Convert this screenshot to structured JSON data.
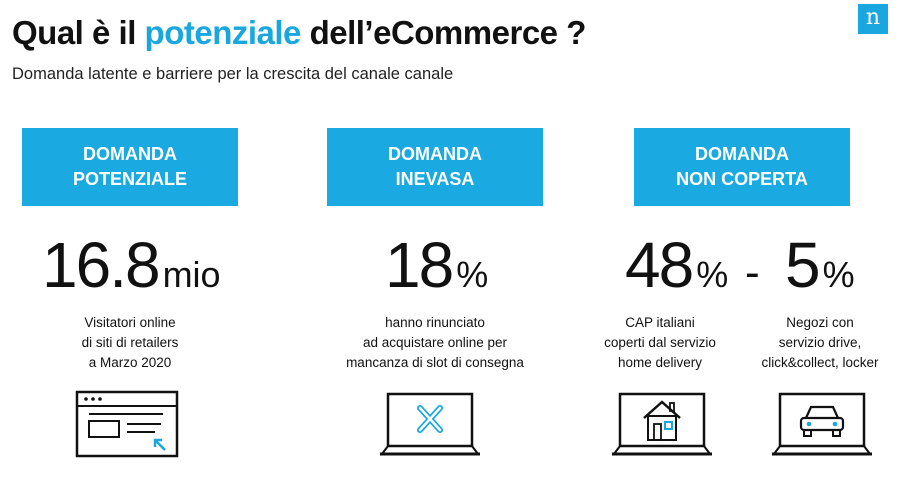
{
  "header": {
    "title_before": "Qual è il ",
    "title_accent": "potenziale",
    "title_after": " dell’eCommerce ?",
    "subtitle": "Domanda latente e barriere per la crescita del canale canale",
    "logo_letter": "n"
  },
  "columns": [
    {
      "header_line1": "DOMANDA",
      "header_line2": "POTENZIALE",
      "stat_value": "16.8",
      "stat_unit": "mio",
      "desc_lines": [
        "Visitatori online",
        "di siti di retailers",
        "a Marzo 2020"
      ],
      "icon": "browser-window-cursor-icon"
    },
    {
      "header_line1": "DOMANDA",
      "header_line2": "INEVASA",
      "stat_value": "18",
      "stat_unit": "%",
      "desc_lines": [
        "hanno rinunciato",
        "ad acquistare online per",
        "mancanza di slot di consegna"
      ],
      "icon": "laptop-x-icon"
    },
    {
      "header_line1": "DOMANDA",
      "header_line2": "NON COPERTA",
      "stats": [
        {
          "value": "48",
          "unit": "%"
        },
        {
          "value": "5",
          "unit": "%"
        }
      ],
      "dash": "-",
      "subitems": [
        {
          "desc_lines": [
            "CAP italiani",
            "coperti dal servizio",
            "home delivery"
          ],
          "icon": "laptop-house-icon"
        },
        {
          "desc_lines": [
            "Negozi con",
            "servizio drive,",
            "click&collect, locker"
          ],
          "icon": "laptop-car-icon"
        }
      ]
    }
  ],
  "colors": {
    "accent": "#1aa7e0",
    "header_bg": "#1ba9e1",
    "text": "#111111"
  }
}
